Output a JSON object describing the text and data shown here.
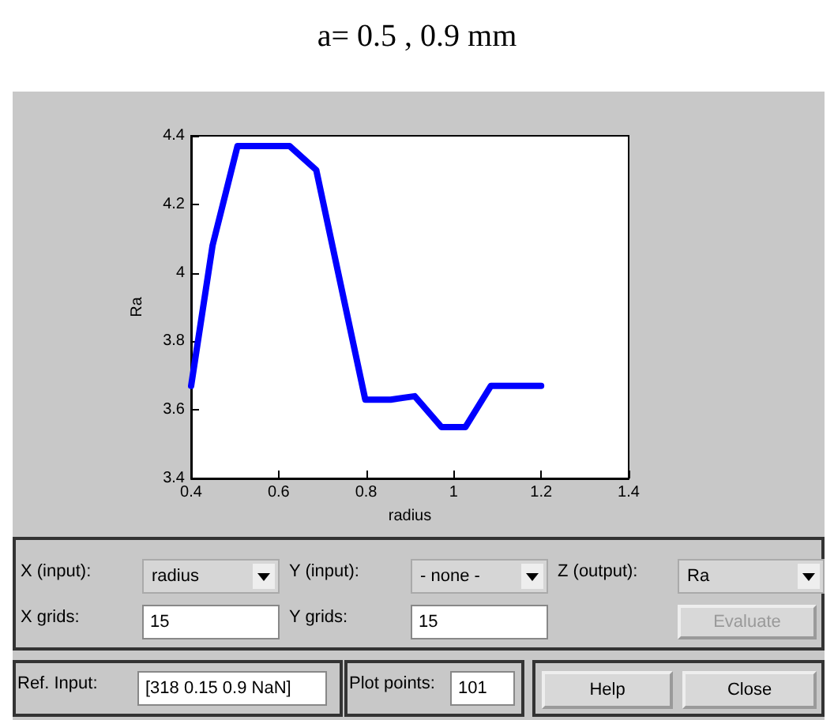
{
  "chart_data": {
    "type": "line",
    "title": "a= 0.5 , 0.9 mm",
    "xlabel": "radius",
    "ylabel": "Ra",
    "x": [
      0.4,
      0.449,
      0.506,
      0.625,
      0.686,
      0.798,
      0.856,
      0.911,
      0.972,
      1.027,
      1.085,
      1.2
    ],
    "series": [
      {
        "color": "#0000ff",
        "values": [
          3.67,
          4.08,
          4.37,
          4.37,
          4.3,
          3.63,
          3.63,
          3.64,
          3.55,
          3.55,
          3.67,
          3.67
        ]
      }
    ],
    "xlim": [
      0.4,
      1.4
    ],
    "xticks": [
      0.4,
      0.6,
      0.8,
      1,
      1.2,
      1.4
    ],
    "ylim": [
      3.4,
      4.4
    ],
    "yticks": [
      3.4,
      3.6,
      3.8,
      4,
      4.2,
      4.4
    ],
    "grid": false,
    "marker": "none",
    "line_style": "solid",
    "annotations": [
      "X (input):",
      "radius",
      "Y (input):",
      "- none -",
      "Z (output):",
      "Ra",
      "X grids:",
      "15",
      "Y grids:",
      "15",
      "Evaluate",
      "Ref. Input:",
      "[318 0.15 0.9 NaN]",
      "Plot points:",
      "101",
      "Help",
      "Close"
    ]
  }
}
